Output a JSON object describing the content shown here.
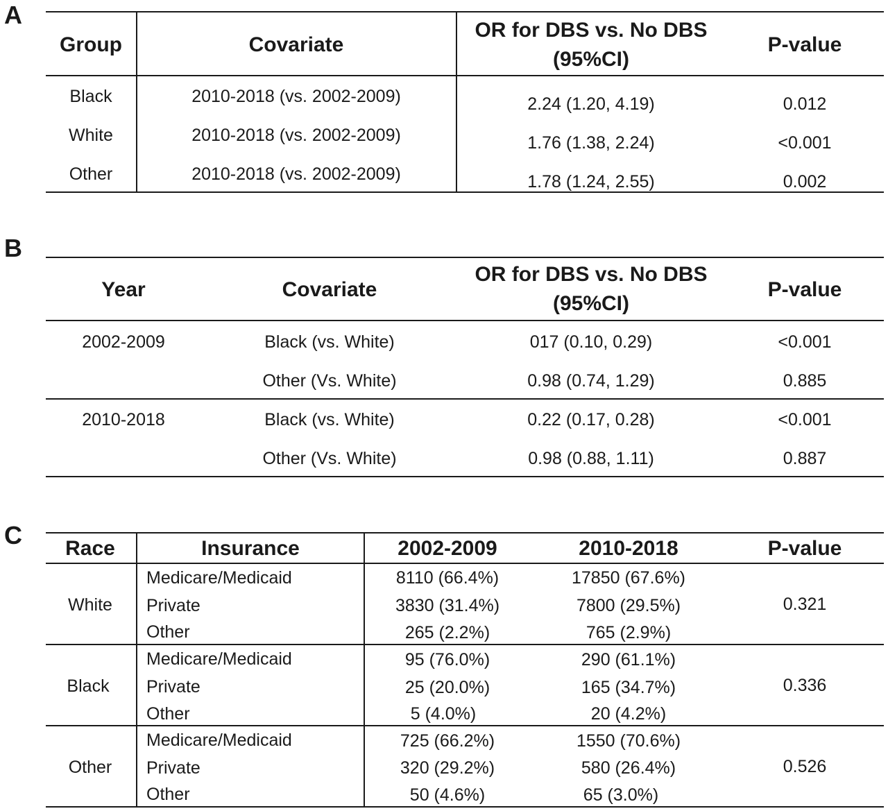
{
  "panelA": {
    "label": "A",
    "headers": {
      "group": "Group",
      "covariate": "Covariate",
      "or_line1": "OR for DBS vs. No DBS",
      "or_line2": "(95%CI)",
      "p": "P-value"
    },
    "rows": [
      {
        "group": "Black",
        "covariate": "2010-2018 (vs. 2002-2009)",
        "or": "2.24 (1.20, 4.19)",
        "p": "0.012"
      },
      {
        "group": "White",
        "covariate": "2010-2018 (vs. 2002-2009)",
        "or": "1.76 (1.38, 2.24)",
        "p": "<0.001"
      },
      {
        "group": "Other",
        "covariate": "2010-2018 (vs. 2002-2009)",
        "or": "1.78 (1.24, 2.55)",
        "p": "0.002"
      }
    ]
  },
  "panelB": {
    "label": "B",
    "headers": {
      "year": "Year",
      "covariate": "Covariate",
      "or_line1": "OR for DBS vs. No DBS",
      "or_line2": "(95%CI)",
      "p": "P-value"
    },
    "groups": [
      {
        "year": "2002-2009",
        "rows": [
          {
            "covariate": "Black (vs. White)",
            "or": "017 (0.10, 0.29)",
            "p": "<0.001"
          },
          {
            "covariate": "Other (Vs. White)",
            "or": "0.98 (0.74, 1.29)",
            "p": "0.885"
          }
        ]
      },
      {
        "year": "2010-2018",
        "rows": [
          {
            "covariate": "Black (vs. White)",
            "or": "0.22 (0.17, 0.28)",
            "p": "<0.001"
          },
          {
            "covariate": "Other (Vs. White)",
            "or": "0.98 (0.88, 1.11)",
            "p": "0.887"
          }
        ]
      }
    ]
  },
  "panelC": {
    "label": "C",
    "headers": {
      "race": "Race",
      "insurance": "Insurance",
      "p1": "2002-2009",
      "p2": "2010-2018",
      "p": "P-value"
    },
    "groups": [
      {
        "race": "White",
        "p": "0.321",
        "rows": [
          {
            "insurance": "Medicare/Medicaid",
            "p1": "8110 (66.4%)",
            "p2": "17850 (67.6%)"
          },
          {
            "insurance": "Private",
            "p1": "3830 (31.4%)",
            "p2": "7800 (29.5%)"
          },
          {
            "insurance": "Other",
            "p1": "265 (2.2%)",
            "p2": "765 (2.9%)"
          }
        ]
      },
      {
        "race": "Black",
        "p": "0.336",
        "rows": [
          {
            "insurance": "Medicare/Medicaid",
            "p1": "95 (76.0%)",
            "p2": "290 (61.1%)"
          },
          {
            "insurance": "Private",
            "p1": "25 (20.0%)",
            "p2": "165 (34.7%)"
          },
          {
            "insurance": "Other",
            "p1": "5 (4.0%)",
            "p2": "20 (4.2%)"
          }
        ]
      },
      {
        "race": "Other",
        "p": "0.526",
        "rows": [
          {
            "insurance": "Medicare/Medicaid",
            "p1": "725 (66.2%)",
            "p2": "1550 (70.6%)"
          },
          {
            "insurance": "Private",
            "p1": "320 (29.2%)",
            "p2": "580 (26.4%)"
          },
          {
            "insurance": "Other",
            "p1": "50 (4.6%)",
            "p2": "65 (3.0%)"
          }
        ]
      }
    ]
  }
}
